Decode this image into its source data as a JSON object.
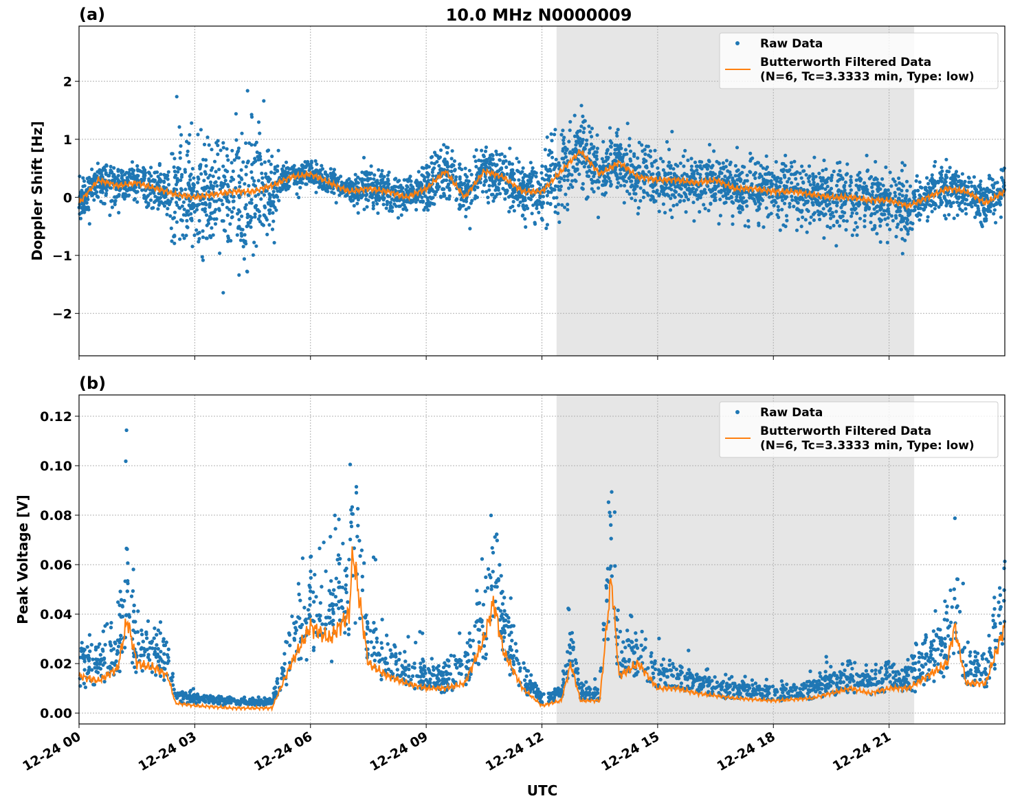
{
  "title": "10.0 MHz N0000009",
  "chart_data": [
    {
      "type": "scatter",
      "panel_label": "(a)",
      "ylabel": "Doppler Shift [Hz]",
      "xlabel": "",
      "xlim_hours": [
        0,
        24
      ],
      "ylim": [
        -2.73,
        2.95
      ],
      "yticks": [
        -2,
        -1,
        0,
        1,
        2
      ],
      "ytick_labels": [
        "−2",
        "−1",
        "0",
        "1",
        "2"
      ],
      "grid": true,
      "legend_position": "top-right",
      "shaded_region_hours": [
        12.38,
        21.65
      ],
      "shade_color": "#e6e6e6",
      "series": [
        {
          "name": "Raw Data",
          "kind": "points",
          "color": "#1f77b4",
          "spread_hours": [
            0,
            1.5,
            2.3,
            5.2,
            7,
            9,
            12,
            13.5,
            17,
            21.5,
            24
          ],
          "spread": [
            0.3,
            0.35,
            1.0,
            0.2,
            0.3,
            0.4,
            0.6,
            0.4,
            0.5,
            0.35
          ]
        },
        {
          "name": "Butterworth Filtered Data",
          "name_line2": "(N=6, Tc=3.3333 min, Type: low)",
          "kind": "line",
          "color": "#ff7f0e",
          "x": [
            0,
            0.5,
            1,
            1.5,
            2,
            2.5,
            3,
            3.5,
            4,
            4.5,
            5,
            5.5,
            6,
            6.5,
            7,
            7.5,
            8,
            8.5,
            9,
            9.5,
            10,
            10.5,
            11,
            11.5,
            12,
            12.5,
            13,
            13.5,
            14,
            14.5,
            15,
            15.5,
            16,
            16.5,
            17,
            17.5,
            18,
            18.5,
            19,
            19.5,
            20,
            20.5,
            21,
            21.5,
            22,
            22.5,
            23,
            23.5,
            24
          ],
          "y": [
            -0.1,
            0.3,
            0.2,
            0.25,
            0.15,
            0.05,
            0.0,
            0.05,
            0.1,
            0.1,
            0.2,
            0.35,
            0.4,
            0.25,
            0.1,
            0.15,
            0.1,
            0.0,
            0.15,
            0.45,
            0.0,
            0.45,
            0.35,
            0.1,
            0.1,
            0.45,
            0.8,
            0.4,
            0.6,
            0.35,
            0.3,
            0.3,
            0.25,
            0.3,
            0.15,
            0.15,
            0.1,
            0.1,
            0.05,
            0.0,
            0.0,
            -0.05,
            -0.05,
            -0.15,
            0.0,
            0.15,
            0.1,
            -0.1,
            0.1
          ]
        }
      ]
    },
    {
      "type": "scatter",
      "panel_label": "(b)",
      "ylabel": "Peak Voltage [V]",
      "xlabel": "UTC",
      "xlim_hours": [
        0,
        24
      ],
      "ylim": [
        -0.0044,
        0.1286
      ],
      "yticks": [
        0,
        0.02,
        0.04,
        0.06,
        0.08,
        0.1,
        0.12
      ],
      "ytick_labels": [
        "0.00",
        "0.02",
        "0.04",
        "0.06",
        "0.08",
        "0.10",
        "0.12"
      ],
      "xtick_hours": [
        0,
        3,
        6,
        9,
        12,
        15,
        18,
        21
      ],
      "xtick_labels": [
        "12-24 00",
        "12-24 03",
        "12-24 06",
        "12-24 09",
        "12-24 12",
        "12-24 15",
        "12-24 18",
        "12-24 21"
      ],
      "grid": true,
      "legend_position": "top-right",
      "shaded_region_hours": [
        12.38,
        21.65
      ],
      "series": [
        {
          "name": "Raw Data",
          "kind": "points",
          "color": "#1f77b4"
        },
        {
          "name": "Butterworth Filtered Data",
          "name_line2": "(N=6, Tc=3.3333 min, Type: low)",
          "kind": "line",
          "color": "#ff7f0e",
          "x": [
            0,
            0.5,
            1,
            1.25,
            1.5,
            2,
            2.3,
            2.5,
            3,
            4,
            5,
            5.5,
            6,
            6.5,
            7,
            7.1,
            7.5,
            8,
            8.5,
            9,
            9.5,
            10,
            10.5,
            10.75,
            11,
            11.5,
            12,
            12.5,
            12.75,
            13,
            13.5,
            13.8,
            14,
            14.5,
            15,
            15.5,
            16,
            17,
            18,
            19,
            19.5,
            20,
            20.5,
            21,
            21.5,
            22,
            22.5,
            22.7,
            23,
            23.5,
            24
          ],
          "y": [
            0.015,
            0.013,
            0.018,
            0.038,
            0.02,
            0.018,
            0.015,
            0.004,
            0.003,
            0.002,
            0.002,
            0.02,
            0.035,
            0.03,
            0.04,
            0.065,
            0.02,
            0.015,
            0.012,
            0.01,
            0.01,
            0.012,
            0.03,
            0.045,
            0.025,
            0.01,
            0.003,
            0.005,
            0.02,
            0.005,
            0.005,
            0.055,
            0.015,
            0.02,
            0.01,
            0.01,
            0.008,
            0.006,
            0.005,
            0.006,
            0.008,
            0.01,
            0.008,
            0.01,
            0.01,
            0.015,
            0.02,
            0.035,
            0.012,
            0.012,
            0.035
          ]
        }
      ]
    }
  ]
}
